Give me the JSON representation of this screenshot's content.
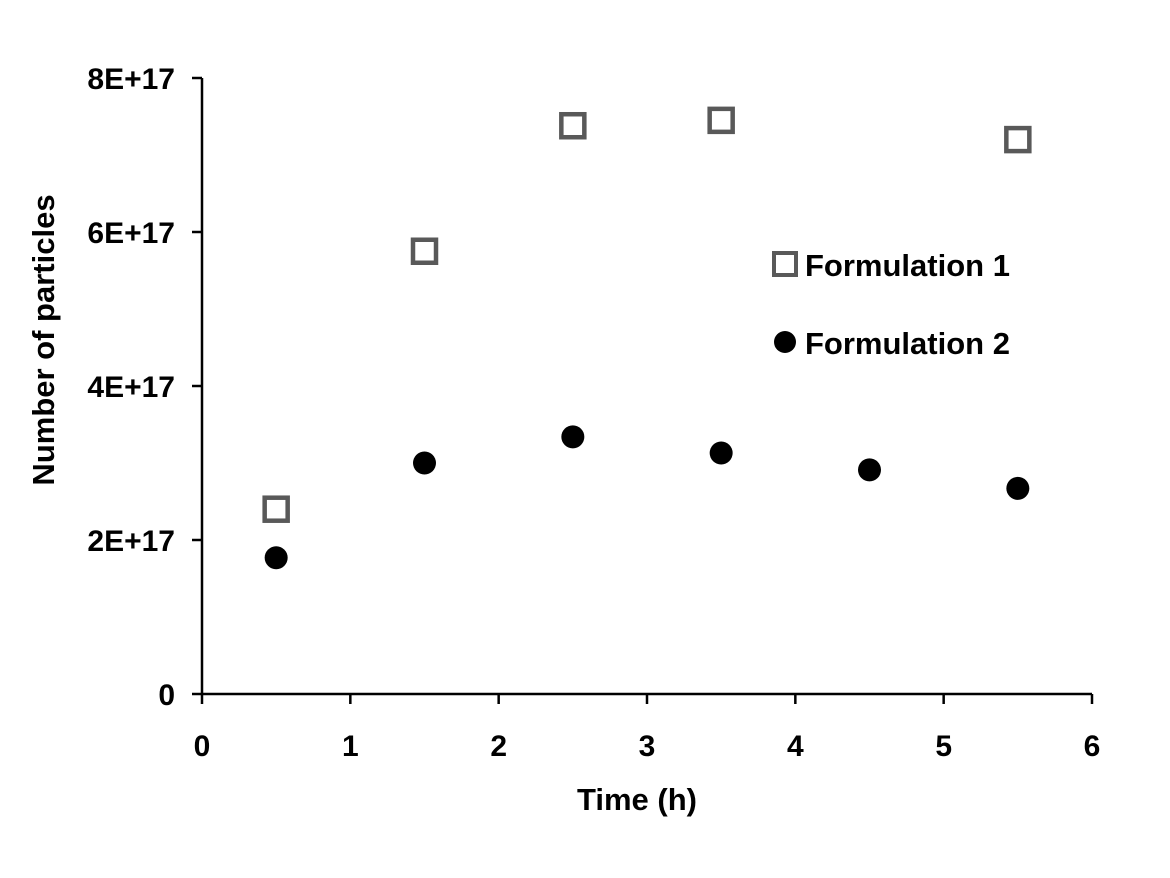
{
  "chart_data": {
    "type": "scatter",
    "title": "",
    "xlabel": "Time (h)",
    "ylabel": "Number of particles",
    "xlim": [
      0,
      6
    ],
    "ylim": [
      0,
      8e+17
    ],
    "xticks": [
      0,
      1,
      2,
      3,
      4,
      5,
      6
    ],
    "xtick_labels": [
      "0",
      "1",
      "2",
      "3",
      "4",
      "5",
      "6"
    ],
    "yticks": [
      0,
      2e+17,
      4e+17,
      6e+17,
      8e+17
    ],
    "ytick_labels": [
      "0",
      "2E+17",
      "4E+17",
      "6E+17",
      "8E+17"
    ],
    "grid": false,
    "legend_position": "right",
    "series": [
      {
        "name": "Formulation 1",
        "marker": "hollow-square",
        "color": "#595959",
        "points": [
          {
            "x": 0.5,
            "y": 2.4e+17
          },
          {
            "x": 1.5,
            "y": 5.75e+17
          },
          {
            "x": 2.5,
            "y": 7.38e+17
          },
          {
            "x": 3.5,
            "y": 7.45e+17
          },
          {
            "x": 5.5,
            "y": 7.2e+17
          }
        ]
      },
      {
        "name": "Formulation 2",
        "marker": "filled-circle",
        "color": "#000000",
        "points": [
          {
            "x": 0.5,
            "y": 1.77e+17
          },
          {
            "x": 1.5,
            "y": 3e+17
          },
          {
            "x": 2.5,
            "y": 3.34e+17
          },
          {
            "x": 3.5,
            "y": 3.13e+17
          },
          {
            "x": 4.5,
            "y": 2.91e+17
          },
          {
            "x": 5.5,
            "y": 2.67e+17
          }
        ]
      }
    ]
  }
}
